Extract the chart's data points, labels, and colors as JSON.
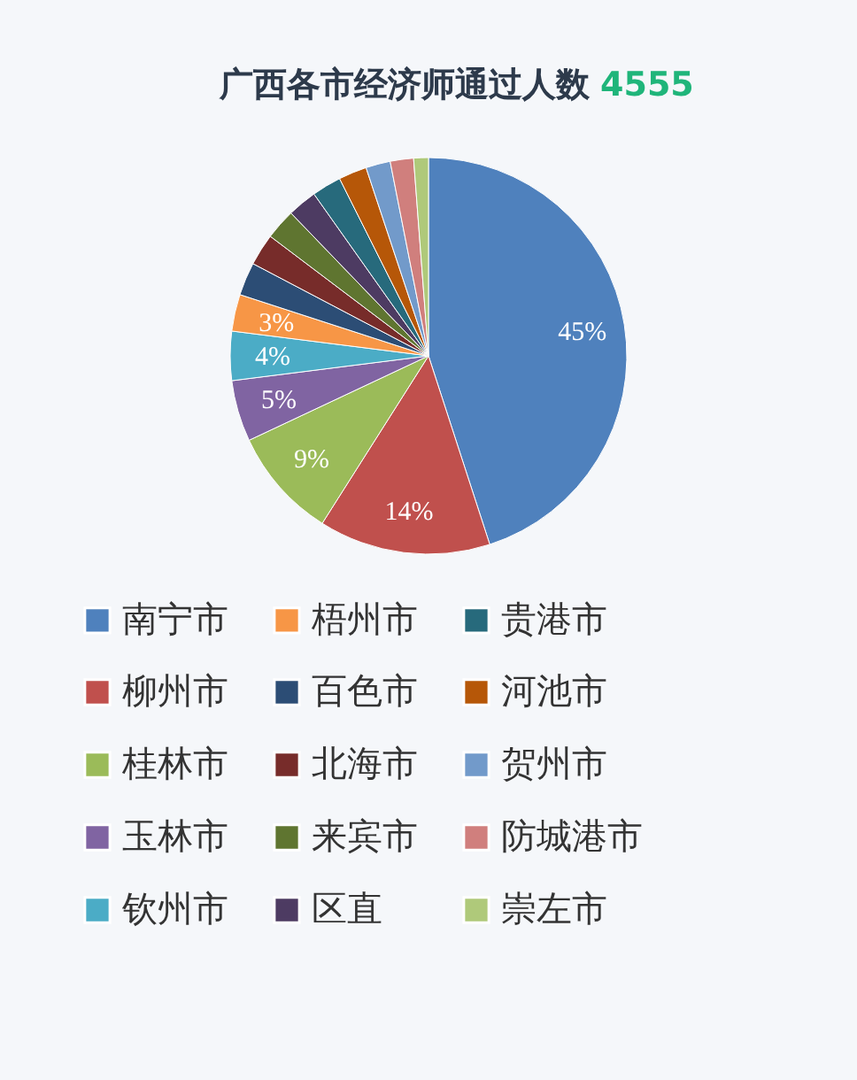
{
  "chart_data": {
    "type": "pie",
    "title": "广西各市经济师通过人数",
    "subtitle": "4555",
    "categories": [
      "南宁市",
      "柳州市",
      "桂林市",
      "玉林市",
      "钦州市",
      "梧州市",
      "百色市",
      "北海市",
      "来宾市",
      "区直",
      "贵港市",
      "河池市",
      "贺州市",
      "防城港市",
      "崇左市"
    ],
    "values": [
      45,
      14,
      9,
      5,
      4,
      3,
      2.7,
      2.6,
      2.5,
      2.4,
      2.4,
      2.3,
      2.0,
      1.9,
      1.2
    ],
    "value_labels": [
      "45%",
      "14%",
      "9%",
      "5%",
      "4%",
      "3%",
      null,
      null,
      null,
      null,
      null,
      null,
      null,
      null,
      null
    ],
    "colors": [
      "#4f81bd",
      "#c0504d",
      "#9bbb59",
      "#8064a2",
      "#4bacc6",
      "#f79646",
      "#2c4d75",
      "#772c2a",
      "#5f7530",
      "#4d3b62",
      "#276a7c",
      "#b65708",
      "#729aca",
      "#d07f7d",
      "#afc97a"
    ],
    "legend": "bottom"
  }
}
